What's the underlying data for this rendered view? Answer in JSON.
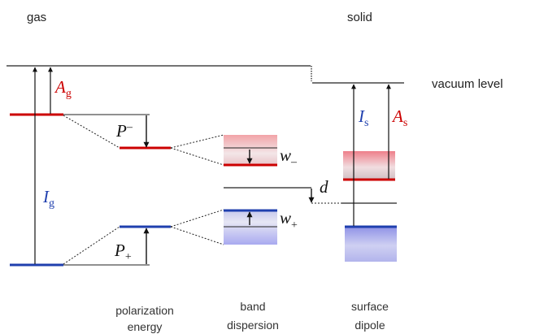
{
  "headers": {
    "gas": "gas",
    "solid": "solid"
  },
  "labels": {
    "vacuum_level": "vacuum level",
    "Ag": {
      "main": "A",
      "sub": "g"
    },
    "Ig": {
      "main": "I",
      "sub": "g"
    },
    "Is": {
      "main": "I",
      "sub": "s"
    },
    "As": {
      "main": "A",
      "sub": "s"
    },
    "P_minus": {
      "main": "P",
      "sub": "–"
    },
    "P_plus": {
      "main": "P",
      "sub": "+"
    },
    "w_minus": {
      "main": "w",
      "sub": "–"
    },
    "w_plus": {
      "main": "w",
      "sub": "+"
    },
    "d": "d"
  },
  "captions": {
    "polarization": [
      "polarization",
      "energy"
    ],
    "band": [
      "band",
      "dispersion"
    ],
    "surface": [
      "surface",
      "dipole"
    ]
  },
  "colors": {
    "red": "#cc0000",
    "blue": "#1f3fae",
    "black": "#111111"
  }
}
